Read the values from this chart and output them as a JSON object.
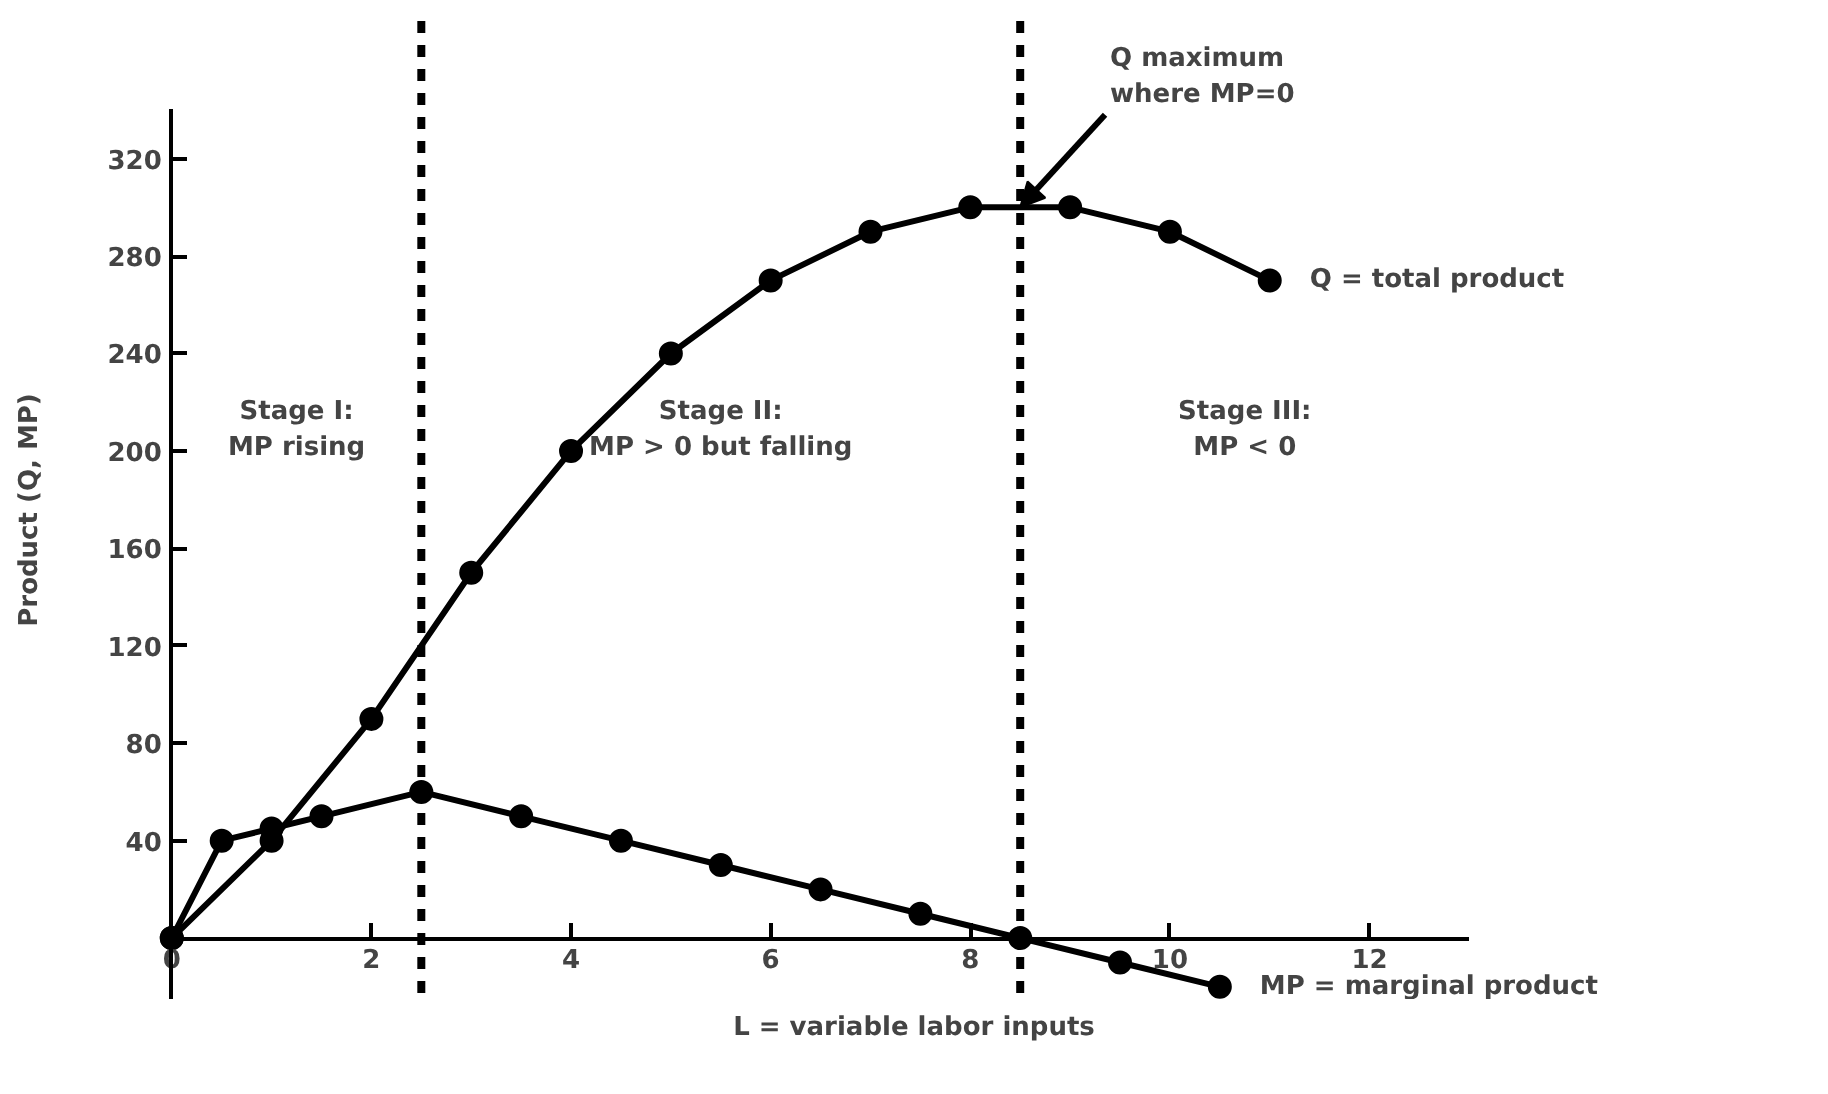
{
  "chart_data": {
    "type": "line",
    "xlabel": "L = variable labor inputs",
    "ylabel": "Product (Q, MP)",
    "series": [
      {
        "name": "Q = total product",
        "color": "#000000",
        "x": [
          0,
          1,
          2,
          3,
          4,
          5,
          6,
          7,
          8,
          9,
          10,
          11
        ],
        "values": [
          0,
          40,
          90,
          150,
          200,
          240,
          270,
          290,
          300,
          300,
          290,
          270
        ]
      },
      {
        "name": "MP = marginal product",
        "color": "#000000",
        "x": [
          0,
          0.5,
          1,
          1.5,
          2.5,
          3.5,
          4.5,
          5.5,
          6.5,
          7.5,
          8.5,
          9.5,
          10.5
        ],
        "values": [
          0,
          40,
          45,
          50,
          60,
          50,
          40,
          30,
          20,
          10,
          0,
          -10,
          -20
        ]
      }
    ],
    "xlim": [
      0,
      13
    ],
    "ylim": [
      -25,
      340
    ],
    "xticks": [
      0,
      2,
      4,
      6,
      8,
      10,
      12
    ],
    "yticks": [
      40,
      80,
      120,
      160,
      200,
      240,
      280,
      320
    ],
    "marker": "circle",
    "line_style": "solid",
    "grid": false,
    "ref_lines": [
      {
        "axis": "x",
        "value": 2.5,
        "color": "#000000",
        "line_style": "dashed"
      },
      {
        "axis": "x",
        "value": 8.5,
        "color": "#000000",
        "line_style": "dashed"
      }
    ],
    "annotations": [
      "Stage I:\nMP rising",
      "Stage II:\nMP > 0 but falling",
      "Stage III:\nMP < 0",
      {
        "text": "Q maximum\nwhere MP=0",
        "x": 8.5,
        "y": 300
      }
    ]
  }
}
